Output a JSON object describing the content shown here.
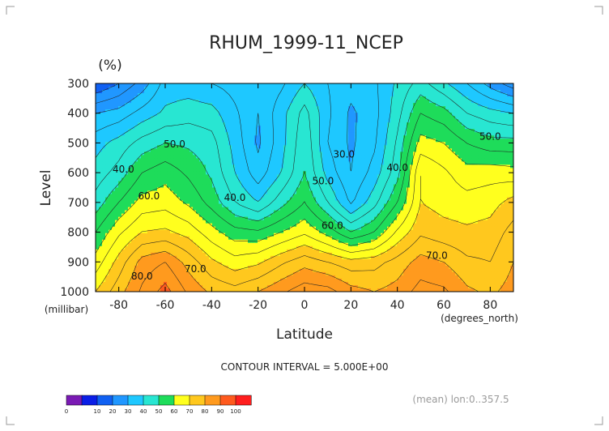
{
  "chart_data": {
    "type": "heatmap",
    "title": "RHUM_1999-11_NCEP",
    "units": "(%)",
    "xlabel": "Latitude",
    "ylabel": "Level",
    "x_unit_label": "(degrees_north)",
    "y_unit_label": "(millibar)",
    "xlim": [
      -90,
      90
    ],
    "ylim": [
      1000,
      300
    ],
    "x_ticks": [
      "-80",
      "-60",
      "-40",
      "-20",
      "0",
      "20",
      "40",
      "60",
      "80"
    ],
    "x_tick_values": [
      -80,
      -60,
      -40,
      -20,
      0,
      20,
      40,
      60,
      80
    ],
    "y_ticks": [
      "300",
      "400",
      "500",
      "600",
      "700",
      "800",
      "900",
      "1000"
    ],
    "y_tick_values": [
      300,
      400,
      500,
      600,
      700,
      800,
      900,
      1000
    ],
    "contour_interval_text": "CONTOUR INTERVAL = 5.000E+00",
    "footnote": "(mean) lon:0..357.5",
    "contour_labels": [
      {
        "text": "50.0",
        "lat": -56,
        "lev": 505
      },
      {
        "text": "40.0",
        "lat": -78,
        "lev": 590
      },
      {
        "text": "60.0",
        "lat": -67,
        "lev": 680
      },
      {
        "text": "40.0",
        "lat": -30,
        "lev": 685
      },
      {
        "text": "30.0",
        "lat": 17,
        "lev": 540
      },
      {
        "text": "40.0",
        "lat": 40,
        "lev": 585
      },
      {
        "text": "50.0",
        "lat": 8,
        "lev": 630
      },
      {
        "text": "60.0",
        "lat": 12,
        "lev": 780
      },
      {
        "text": "70.0",
        "lat": -47,
        "lev": 925
      },
      {
        "text": "70.0",
        "lat": 57,
        "lev": 880
      },
      {
        "text": "80.0",
        "lat": -70,
        "lev": 950
      },
      {
        "text": "50.0",
        "lat": 80,
        "lev": 480
      }
    ],
    "colorbar": {
      "tick_labels": [
        "0",
        "10",
        "20",
        "30",
        "40",
        "50",
        "60",
        "70",
        "80",
        "90",
        "100"
      ],
      "colors": [
        "#7a1ab4",
        "#0a1ee6",
        "#1060f2",
        "#2097ff",
        "#1ec8ff",
        "#28e6d2",
        "#1edc5a",
        "#ffff1e",
        "#ffc81e",
        "#ff9a1e",
        "#ff5a1e",
        "#ff1e1e"
      ]
    },
    "series": [
      {
        "name": "",
        "lat": [
          -90,
          -80,
          -70,
          -60,
          -50,
          -40,
          -30,
          -20,
          -10,
          0,
          10,
          20,
          30,
          40,
          50,
          60,
          70,
          80,
          90
        ],
        "lev": [
          300,
          400,
          500,
          600,
          700,
          800,
          900,
          1000
        ],
        "values": [
          [
            15,
            20,
            27,
            37,
            37,
            35,
            33,
            31,
            34,
            40,
            35,
            32,
            34,
            41,
            47,
            41,
            35,
            28,
            22
          ],
          [
            30,
            32,
            37,
            41,
            43,
            42,
            36,
            30,
            38,
            47,
            36,
            29,
            33,
            43,
            55,
            52,
            45,
            42,
            40
          ],
          [
            38,
            42,
            47,
            50,
            49,
            47,
            38,
            29,
            38,
            49,
            35,
            29,
            34,
            46,
            62,
            60,
            55,
            52,
            52
          ],
          [
            42,
            47,
            55,
            58,
            54,
            49,
            40,
            32,
            40,
            50,
            38,
            30,
            37,
            48,
            70,
            66,
            62,
            63,
            62
          ],
          [
            47,
            55,
            62,
            63,
            59,
            53,
            45,
            40,
            48,
            55,
            45,
            34,
            43,
            55,
            70,
            68,
            67,
            68,
            72
          ],
          [
            55,
            64,
            70,
            71,
            68,
            62,
            57,
            56,
            60,
            64,
            58,
            50,
            55,
            66,
            74,
            72,
            71,
            72,
            77
          ],
          [
            62,
            72,
            82,
            85,
            78,
            71,
            67,
            69,
            74,
            78,
            75,
            72,
            73,
            77,
            82,
            80,
            76,
            75,
            80
          ],
          [
            70,
            78,
            86,
            92,
            84,
            79,
            77,
            80,
            84,
            88,
            87,
            82,
            80,
            82,
            87,
            86,
            81,
            79,
            82
          ]
        ]
      }
    ]
  }
}
